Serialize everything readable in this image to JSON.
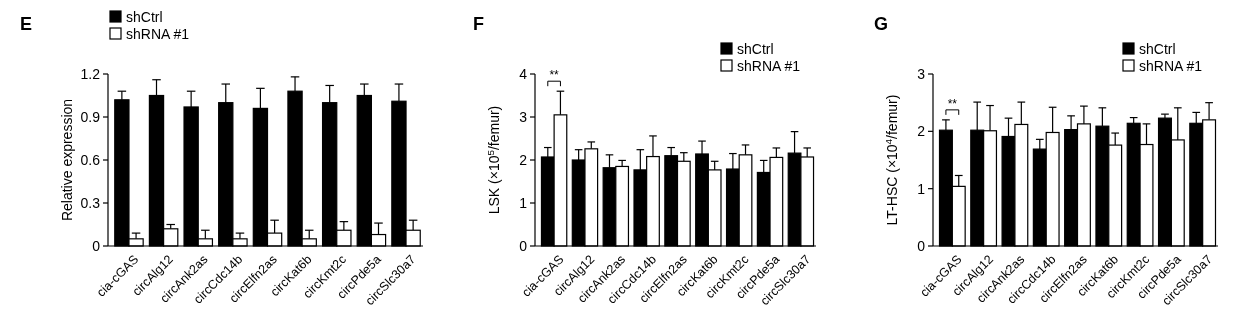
{
  "chart_data": [
    {
      "type": "bar",
      "title": "E",
      "ylabel": "Relative expression",
      "categories": [
        "cia-cGAS",
        "circAlg12",
        "circAnk2as",
        "circCdc14b",
        "circElfn2as",
        "circKat6b",
        "circKmt2c",
        "circPde5a",
        "circSlc30a7"
      ],
      "series": [
        {
          "name": "shCtrl",
          "color": "#000000",
          "values": [
            1.02,
            1.05,
            0.97,
            1.0,
            0.96,
            1.08,
            1.0,
            1.05,
            1.01
          ],
          "errors": [
            0.06,
            0.11,
            0.11,
            0.13,
            0.14,
            0.1,
            0.12,
            0.08,
            0.12
          ]
        },
        {
          "name": "shRNA #1",
          "color": "#ffffff",
          "values": [
            0.05,
            0.12,
            0.05,
            0.05,
            0.09,
            0.05,
            0.11,
            0.08,
            0.11
          ],
          "errors": [
            0.04,
            0.03,
            0.06,
            0.04,
            0.09,
            0.06,
            0.06,
            0.08,
            0.07
          ]
        }
      ],
      "ylim": [
        0,
        1.2
      ],
      "yticks": [
        0,
        0.3,
        0.6,
        0.9,
        1.2
      ],
      "legend": "top left"
    },
    {
      "type": "bar",
      "title": "F",
      "ylabel": "LSK (×10$^{5}$/femur)",
      "categories": [
        "cia-cGAS",
        "circAlg12",
        "circAnk2as",
        "circCdc14b",
        "circElfn2as",
        "circKat6b",
        "circKmt2c",
        "circPde5a",
        "circSlc30a7"
      ],
      "series": [
        {
          "name": "shCtrl",
          "color": "#000000",
          "values": [
            2.07,
            2.0,
            1.82,
            1.77,
            2.1,
            2.14,
            1.79,
            1.71,
            2.16
          ],
          "errors": [
            0.22,
            0.24,
            0.3,
            0.47,
            0.19,
            0.3,
            0.36,
            0.28,
            0.5
          ]
        },
        {
          "name": "shRNA #1",
          "color": "#ffffff",
          "values": [
            3.05,
            2.26,
            1.85,
            2.08,
            1.97,
            1.77,
            2.12,
            2.06,
            2.07
          ],
          "errors": [
            0.55,
            0.16,
            0.14,
            0.48,
            0.2,
            0.2,
            0.23,
            0.22,
            0.21
          ]
        }
      ],
      "ylim": [
        0,
        4
      ],
      "yticks": [
        0,
        1,
        2,
        3,
        4
      ],
      "legend": "top right",
      "annotations": [
        "**"
      ]
    },
    {
      "type": "bar",
      "title": "G",
      "ylabel": "LT-HSC (×10$^{4}$/femur)",
      "categories": [
        "cia-cGAS",
        "circAlg12",
        "circAnk2as",
        "circCdc14b",
        "circElfn2as",
        "circKat6b",
        "circKmt2c",
        "circPde5a",
        "circSlc30a7"
      ],
      "series": [
        {
          "name": "shCtrl",
          "color": "#000000",
          "values": [
            2.02,
            2.02,
            1.91,
            1.69,
            2.03,
            2.09,
            2.14,
            2.23,
            2.14
          ],
          "errors": [
            0.18,
            0.49,
            0.32,
            0.17,
            0.24,
            0.32,
            0.1,
            0.07,
            0.19
          ]
        },
        {
          "name": "shRNA #1",
          "color": "#ffffff",
          "values": [
            1.04,
            2.01,
            2.12,
            1.98,
            2.13,
            1.76,
            1.77,
            1.85,
            2.2
          ],
          "errors": [
            0.19,
            0.44,
            0.39,
            0.44,
            0.31,
            0.21,
            0.36,
            0.56,
            0.3
          ]
        }
      ],
      "ylim": [
        0,
        3
      ],
      "yticks": [
        0,
        1,
        2,
        3
      ],
      "legend": "top right",
      "annotations": [
        "**"
      ]
    }
  ]
}
